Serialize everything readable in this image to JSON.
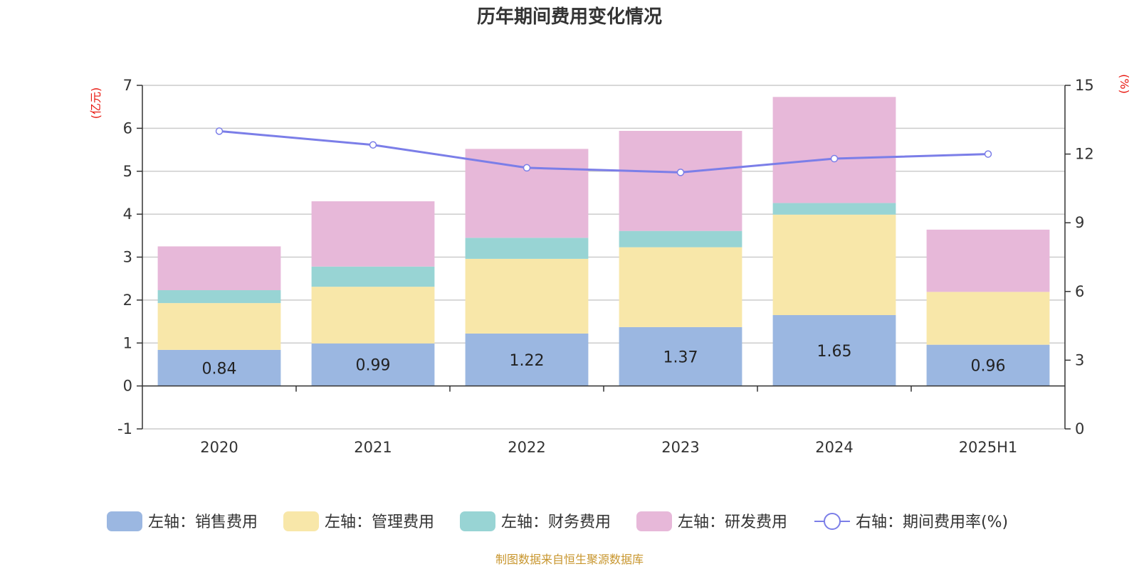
{
  "chart_data": {
    "type": "bar",
    "stacked": true,
    "title": "历年期间费用变化情况",
    "left_axis_unit": "(亿元)",
    "right_axis_unit": "(%)",
    "categories": [
      "2020",
      "2021",
      "2022",
      "2023",
      "2024",
      "2025H1"
    ],
    "ylim_left": [
      -1,
      7
    ],
    "yticks_left": [
      -1,
      0,
      1,
      2,
      3,
      4,
      5,
      6,
      7
    ],
    "ylim_right": [
      0,
      15
    ],
    "yticks_right": [
      0,
      3,
      6,
      9,
      12,
      15
    ],
    "grid": true,
    "legend_position": "bottom",
    "series": [
      {
        "name": "左轴：销售费用",
        "axis": "left",
        "color": "#9bb7e1",
        "values": [
          0.84,
          0.99,
          1.22,
          1.37,
          1.65,
          0.96
        ],
        "labels": [
          "0.84",
          "0.99",
          "1.22",
          "1.37",
          "1.65",
          "0.96"
        ]
      },
      {
        "name": "左轴：管理费用",
        "axis": "left",
        "color": "#f8e7a9",
        "values": [
          1.09,
          1.32,
          1.74,
          1.86,
          2.34,
          1.23
        ]
      },
      {
        "name": "左轴：财务费用",
        "axis": "left",
        "color": "#98d4d4",
        "values": [
          0.3,
          0.47,
          0.49,
          0.38,
          0.27,
          0.0
        ]
      },
      {
        "name": "左轴：研发费用",
        "axis": "left",
        "color": "#e7b8d9",
        "values": [
          1.02,
          1.52,
          2.07,
          2.33,
          2.47,
          1.45
        ]
      }
    ],
    "line_series": {
      "name": "右轴：期间费用率(%)",
      "axis": "right",
      "color": "#7b7ee8",
      "values": [
        13.0,
        12.4,
        11.4,
        11.2,
        11.8,
        12.0
      ]
    },
    "source": "制图数据来自恒生聚源数据库"
  }
}
